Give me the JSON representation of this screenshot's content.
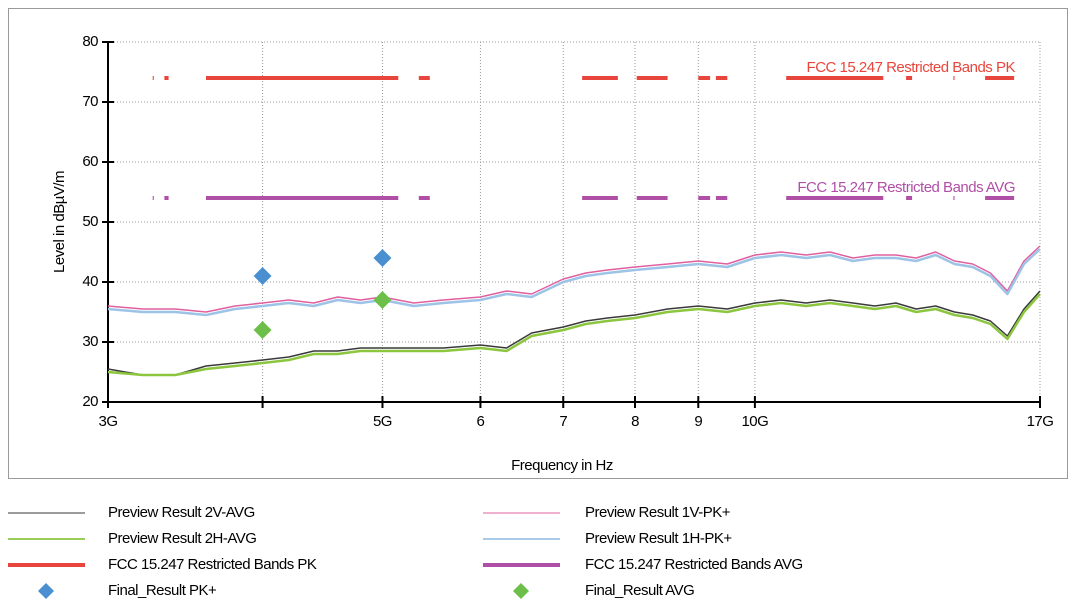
{
  "chart_data": {
    "type": "line",
    "x_label": "Frequency in Hz",
    "y_label": "Level in dBµV/m",
    "xlog": true,
    "xlim": [
      3,
      17
    ],
    "ylim": [
      20,
      80
    ],
    "yticks": [
      20,
      30,
      40,
      50,
      60,
      70,
      80
    ],
    "xticks": [
      {
        "value": 3,
        "label": "3G"
      },
      {
        "value": 4
      },
      {
        "value": 5,
        "label": "5G"
      },
      6,
      7,
      8,
      9,
      {
        "value": 10,
        "label": "10G"
      },
      {
        "value": 17,
        "label": "17G"
      }
    ],
    "grid": true,
    "series": [
      {
        "name": "Preview Result 2V-AVG",
        "style": "line",
        "color": "#3a3a3a",
        "line_width": 1.5,
        "x": [
          3,
          3.2,
          3.4,
          3.6,
          3.8,
          4,
          4.2,
          4.4,
          4.6,
          4.8,
          5,
          5.3,
          5.6,
          6,
          6.3,
          6.6,
          7,
          7.3,
          7.6,
          8,
          8.5,
          9,
          9.5,
          10,
          10.5,
          11,
          11.5,
          12,
          12.5,
          13,
          13.5,
          14,
          14.5,
          15,
          15.5,
          16,
          16.5,
          17
        ],
        "values": [
          25.5,
          24.5,
          24.5,
          26,
          26.5,
          27,
          27.5,
          28.5,
          28.5,
          29,
          29,
          29,
          29,
          29.5,
          29,
          31.5,
          32.5,
          33.5,
          34,
          34.5,
          35.5,
          36,
          35.5,
          36.5,
          37,
          36.5,
          37,
          36.5,
          36,
          36.5,
          35.5,
          36,
          35,
          34.5,
          33.5,
          31,
          35.5,
          38.5
        ]
      },
      {
        "name": "Preview Result 1V-PK+",
        "style": "line",
        "color": "#e0609f",
        "line_width": 1.5,
        "x": [
          3,
          3.2,
          3.4,
          3.6,
          3.8,
          4,
          4.2,
          4.4,
          4.6,
          4.8,
          5,
          5.3,
          5.6,
          6,
          6.3,
          6.6,
          7,
          7.3,
          7.6,
          8,
          8.5,
          9,
          9.5,
          10,
          10.5,
          11,
          11.5,
          12,
          12.5,
          13,
          13.5,
          14,
          14.5,
          15,
          15.5,
          16,
          16.5,
          17
        ],
        "values": [
          36,
          35.5,
          35.5,
          35,
          36,
          36.5,
          37,
          36.5,
          37.5,
          37,
          37.5,
          36.5,
          37,
          37.5,
          38.5,
          38,
          40.5,
          41.5,
          42,
          42.5,
          43,
          43.5,
          43,
          44.5,
          45,
          44.5,
          45,
          44,
          44.5,
          44.5,
          44,
          45,
          43.5,
          43,
          41.5,
          38.5,
          43.5,
          46
        ]
      },
      {
        "name": "Preview Result 2H-AVG",
        "style": "line",
        "color": "#8cc63f",
        "line_width": 2.5,
        "x": [
          3,
          3.2,
          3.4,
          3.6,
          3.8,
          4,
          4.2,
          4.4,
          4.6,
          4.8,
          5,
          5.3,
          5.6,
          6,
          6.3,
          6.6,
          7,
          7.3,
          7.6,
          8,
          8.5,
          9,
          9.5,
          10,
          10.5,
          11,
          11.5,
          12,
          12.5,
          13,
          13.5,
          14,
          14.5,
          15,
          15.5,
          16,
          16.5,
          17
        ],
        "values": [
          25,
          24.5,
          24.5,
          25.5,
          26,
          26.5,
          27,
          28,
          28,
          28.5,
          28.5,
          28.5,
          28.5,
          29,
          28.5,
          31,
          32,
          33,
          33.5,
          34,
          35,
          35.5,
          35,
          36,
          36.5,
          36,
          36.5,
          36,
          35.5,
          36,
          35,
          35.5,
          34.5,
          34,
          33,
          30.5,
          35,
          38
        ]
      },
      {
        "name": "Preview Result 1H-PK+",
        "style": "line",
        "color": "#9dc3e6",
        "line_width": 2.5,
        "x": [
          3,
          3.2,
          3.4,
          3.6,
          3.8,
          4,
          4.2,
          4.4,
          4.6,
          4.8,
          5,
          5.3,
          5.6,
          6,
          6.3,
          6.6,
          7,
          7.3,
          7.6,
          8,
          8.5,
          9,
          9.5,
          10,
          10.5,
          11,
          11.5,
          12,
          12.5,
          13,
          13.5,
          14,
          14.5,
          15,
          15.5,
          16,
          16.5,
          17
        ],
        "values": [
          35.5,
          35,
          35,
          34.5,
          35.5,
          36,
          36.5,
          36,
          37,
          36.5,
          37,
          36,
          36.5,
          37,
          38,
          37.5,
          40,
          41,
          41.5,
          42,
          42.5,
          43,
          42.5,
          44,
          44.5,
          44,
          44.5,
          43.5,
          44,
          44,
          43.5,
          44.5,
          43,
          42.5,
          41,
          38,
          43,
          45.5
        ]
      },
      {
        "name": "FCC 15.247 Restricted Bands PK",
        "style": "line",
        "color": "#e8463c",
        "line_width": 4,
        "x": [
          3.26,
          3.267,
          3.3,
          3.332,
          3.358,
          3.5,
          3.6,
          5.15,
          5.25,
          5.35,
          5.46,
          6.5,
          7.25,
          7.75,
          7.9,
          8.025,
          8.5,
          8.7,
          9.0,
          9.2,
          9.25,
          9.3,
          9.5,
          10,
          10.6,
          12.7,
          13,
          13.25,
          13.4,
          14,
          14.47,
          14.5,
          15,
          15.35,
          16.2
        ],
        "values": [
          74,
          74,
          null,
          74,
          74,
          null,
          74,
          74,
          null,
          74,
          74,
          null,
          74,
          74,
          null,
          74,
          74,
          null,
          74,
          74,
          null,
          74,
          74,
          null,
          74,
          74,
          null,
          74,
          74,
          null,
          74,
          74,
          null,
          74,
          74
        ]
      },
      {
        "name": "FCC 15.247 Restricted Bands AVG",
        "style": "line",
        "color": "#b04fa6",
        "line_width": 4,
        "x": [
          3.26,
          3.267,
          3.3,
          3.332,
          3.358,
          3.5,
          3.6,
          5.15,
          5.25,
          5.35,
          5.46,
          6.5,
          7.25,
          7.75,
          7.9,
          8.025,
          8.5,
          8.7,
          9.0,
          9.2,
          9.25,
          9.3,
          9.5,
          10,
          10.6,
          12.7,
          13,
          13.25,
          13.4,
          14,
          14.47,
          14.5,
          15,
          15.35,
          16.2
        ],
        "values": [
          54,
          54,
          null,
          54,
          54,
          null,
          54,
          54,
          null,
          54,
          54,
          null,
          54,
          54,
          null,
          54,
          54,
          null,
          54,
          54,
          null,
          54,
          54,
          null,
          54,
          54,
          null,
          54,
          54,
          null,
          54,
          54,
          null,
          54,
          54
        ]
      },
      {
        "name": "Final_Result PK+",
        "style": "diamond",
        "color": "#4a90d0",
        "x": [
          4,
          5
        ],
        "values": [
          41,
          44
        ]
      },
      {
        "name": "Final_Result AVG",
        "style": "diamond",
        "color": "#6cc04a",
        "x": [
          4,
          5
        ],
        "values": [
          32,
          37
        ]
      }
    ],
    "annotations": [
      {
        "series": 4,
        "text": "FCC 15.247 Restricted Bands PK"
      },
      {
        "series": 5,
        "text": "FCC 15.247 Restricted Bands AVG"
      }
    ]
  }
}
